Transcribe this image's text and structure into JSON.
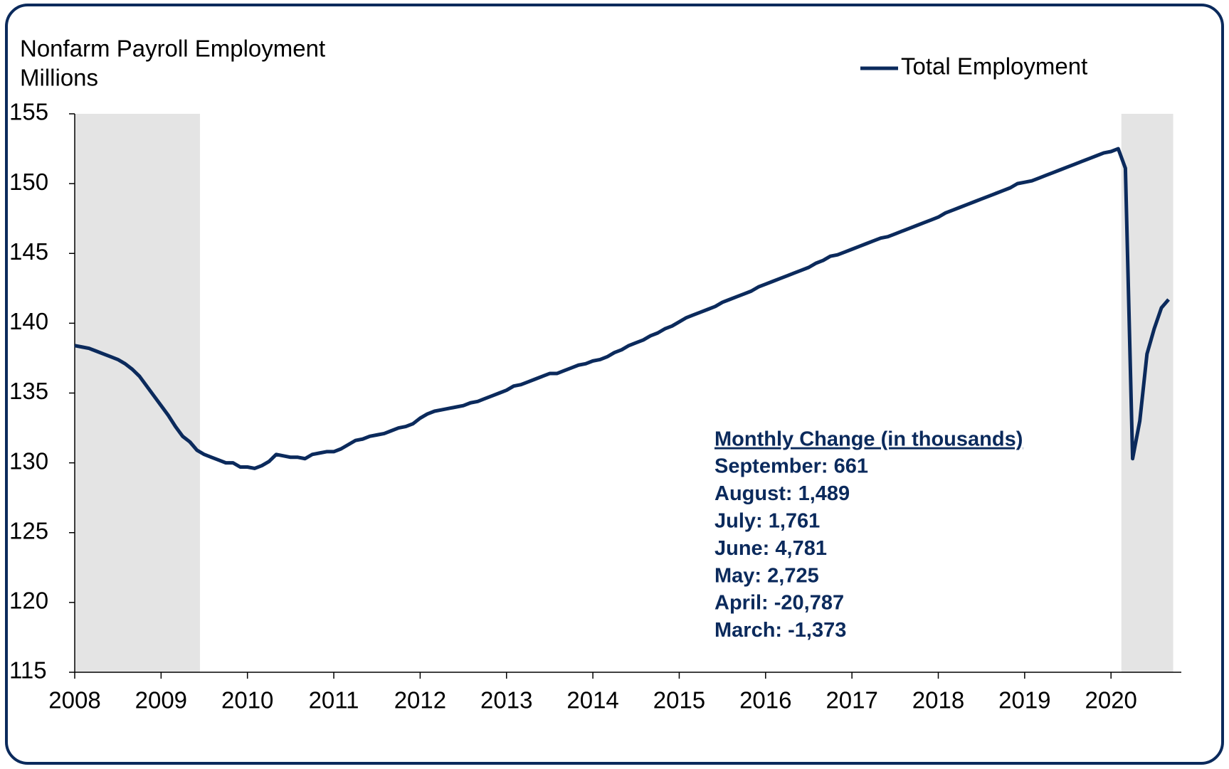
{
  "chart_data": {
    "type": "line",
    "title": "Nonfarm Payroll Employment",
    "y_axis_label": "Millions",
    "categories": [
      "2008",
      null,
      null,
      null,
      null,
      null,
      null,
      null,
      null,
      null,
      null,
      null,
      "2009",
      null,
      null,
      null,
      null,
      null,
      null,
      null,
      null,
      null,
      null,
      null,
      "2010",
      null,
      null,
      null,
      null,
      null,
      null,
      null,
      null,
      null,
      null,
      null,
      "2011",
      null,
      null,
      null,
      null,
      null,
      null,
      null,
      null,
      null,
      null,
      null,
      "2012",
      null,
      null,
      null,
      null,
      null,
      null,
      null,
      null,
      null,
      null,
      null,
      "2013",
      null,
      null,
      null,
      null,
      null,
      null,
      null,
      null,
      null,
      null,
      null,
      "2014",
      null,
      null,
      null,
      null,
      null,
      null,
      null,
      null,
      null,
      null,
      null,
      "2015",
      null,
      null,
      null,
      null,
      null,
      null,
      null,
      null,
      null,
      null,
      null,
      "2016",
      null,
      null,
      null,
      null,
      null,
      null,
      null,
      null,
      null,
      null,
      null,
      "2017",
      null,
      null,
      null,
      null,
      null,
      null,
      null,
      null,
      null,
      null,
      null,
      "2018",
      null,
      null,
      null,
      null,
      null,
      null,
      null,
      null,
      null,
      null,
      null,
      "2019",
      null,
      null,
      null,
      null,
      null,
      null,
      null,
      null,
      null,
      null,
      null,
      "2020",
      null,
      null,
      null,
      null,
      null,
      null,
      null,
      null
    ],
    "series": [
      {
        "name": "Total Employment",
        "color": "#0b2a5c",
        "values": [
          138.4,
          138.3,
          138.2,
          138.0,
          137.8,
          137.6,
          137.4,
          137.1,
          136.7,
          136.2,
          135.5,
          134.8,
          134.1,
          133.4,
          132.6,
          131.9,
          131.5,
          130.9,
          130.6,
          130.4,
          130.2,
          130.0,
          130.0,
          129.7,
          129.7,
          129.6,
          129.8,
          130.1,
          130.6,
          130.5,
          130.4,
          130.4,
          130.3,
          130.6,
          130.7,
          130.8,
          130.8,
          131.0,
          131.3,
          131.6,
          131.7,
          131.9,
          132.0,
          132.1,
          132.3,
          132.5,
          132.6,
          132.8,
          133.2,
          133.5,
          133.7,
          133.8,
          133.9,
          134.0,
          134.1,
          134.3,
          134.4,
          134.6,
          134.8,
          135.0,
          135.2,
          135.5,
          135.6,
          135.8,
          136.0,
          136.2,
          136.4,
          136.4,
          136.6,
          136.8,
          137.0,
          137.1,
          137.3,
          137.4,
          137.6,
          137.9,
          138.1,
          138.4,
          138.6,
          138.8,
          139.1,
          139.3,
          139.6,
          139.8,
          140.1,
          140.4,
          140.6,
          140.8,
          141.0,
          141.2,
          141.5,
          141.7,
          141.9,
          142.1,
          142.3,
          142.6,
          142.8,
          143.0,
          143.2,
          143.4,
          143.6,
          143.8,
          144.0,
          144.3,
          144.5,
          144.8,
          144.9,
          145.1,
          145.3,
          145.5,
          145.7,
          145.9,
          146.1,
          146.2,
          146.4,
          146.6,
          146.8,
          147.0,
          147.2,
          147.4,
          147.6,
          147.9,
          148.1,
          148.3,
          148.5,
          148.7,
          148.9,
          149.1,
          149.3,
          149.5,
          149.7,
          150.0,
          150.1,
          150.2,
          150.4,
          150.6,
          150.8,
          151.0,
          151.2,
          151.4,
          151.6,
          151.8,
          152.0,
          152.2,
          152.3,
          152.5,
          151.1,
          130.3,
          133.0,
          137.8,
          139.6,
          141.1,
          141.7
        ]
      }
    ],
    "ylim": [
      115,
      155
    ],
    "yticks": [
      115,
      120,
      125,
      130,
      135,
      140,
      145,
      150,
      155
    ],
    "recession_shading": [
      [
        2008,
        2009.45
      ],
      [
        2020.12,
        2020.72
      ]
    ],
    "shading_color": "#e4e4e4",
    "legend": "top-right",
    "annotation": {
      "title": "Monthly Change (in thousands)",
      "lines": [
        "September: 661",
        "August: 1,489",
        "July: 1,761",
        "June: 4,781",
        "May: 2,725",
        "April: -20,787",
        "March: -1,373"
      ]
    }
  }
}
